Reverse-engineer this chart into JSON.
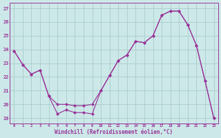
{
  "xlabel": "Windchill (Refroidissement éolien,°C)",
  "hours": [
    0,
    1,
    2,
    3,
    4,
    5,
    6,
    7,
    8,
    9,
    10,
    11,
    12,
    13,
    14,
    15,
    16,
    17,
    18,
    19,
    20,
    21,
    22,
    23
  ],
  "line1": [
    23.9,
    22.9,
    22.2,
    22.5,
    20.6,
    20.0,
    20.0,
    19.9,
    19.9,
    20.0,
    21.0,
    22.1,
    23.2,
    23.6,
    24.6,
    24.5,
    25.0,
    26.5,
    26.8,
    26.8,
    25.8,
    24.3,
    21.7,
    19.0
  ],
  "line2": [
    23.9,
    22.9,
    22.2,
    22.5,
    20.6,
    19.3,
    19.6,
    19.4,
    19.4,
    19.3,
    21.0,
    22.1,
    23.2,
    23.6,
    24.6,
    24.5,
    25.0,
    26.5,
    26.8,
    26.8,
    25.8,
    24.3,
    21.7,
    19.0
  ],
  "color": "#993399",
  "bg_color": "#cce8e8",
  "grid_color": "#aacccc",
  "ylim": [
    18.6,
    27.4
  ],
  "yticks": [
    19,
    20,
    21,
    22,
    23,
    24,
    25,
    26,
    27
  ],
  "figsize": [
    3.2,
    2.0
  ],
  "dpi": 100
}
